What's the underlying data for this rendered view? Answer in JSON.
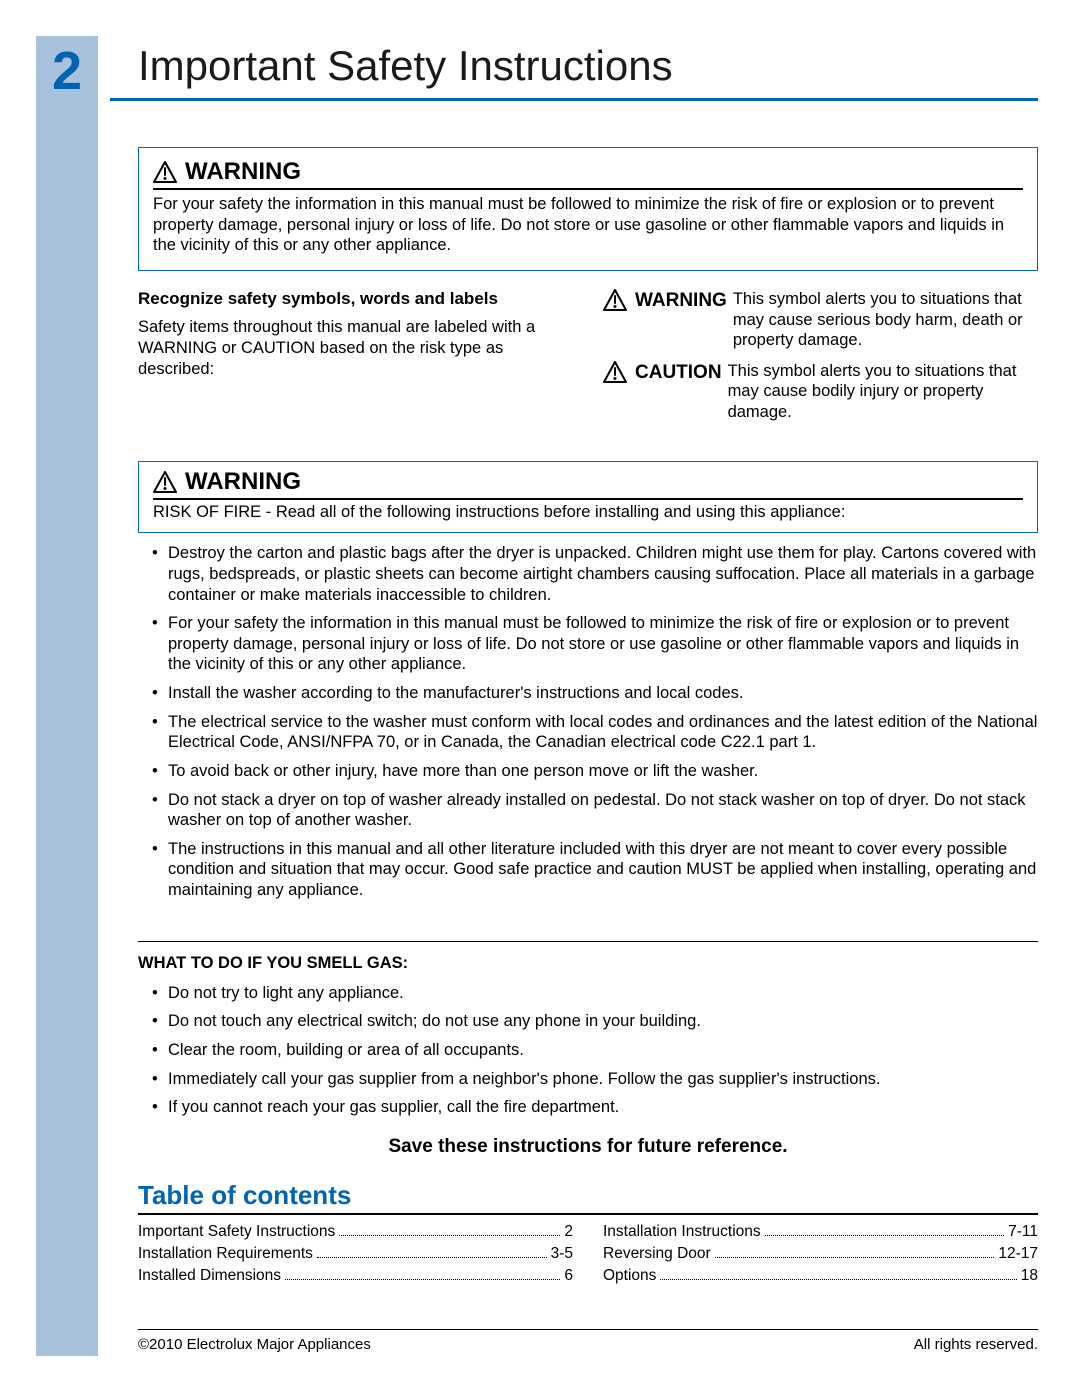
{
  "page": {
    "number": "2",
    "title": "Important Safety Instructions"
  },
  "colors": {
    "accent": "#0064b3",
    "sidebar": "#a8c1dc",
    "text": "#000000",
    "bg": "#ffffff"
  },
  "warning1": {
    "label": "WARNING",
    "body": "For your safety the information in this manual must be followed to minimize the risk of fire or explosion or to prevent property damage, personal injury or loss of life. Do not store or use gasoline or other flammable vapors and liquids in the vicinity of this or any other appliance."
  },
  "recognize": {
    "heading": "Recognize safety symbols, words and labels",
    "body": "Safety items throughout this manual are labeled with a WARNING or CAUTION based on the risk type as described:"
  },
  "symbols": {
    "warning_label": "WARNING",
    "warning_text": "This symbol alerts you to situations that may cause serious body harm, death or property damage.",
    "caution_label": "CAUTION",
    "caution_text": "This symbol alerts you to situations that may cause bodily injury or property damage."
  },
  "warning2": {
    "label": "WARNING",
    "body": "RISK OF FIRE - Read all of the following instructions before installing and using this appliance:"
  },
  "bullets": [
    "Destroy the carton and plastic bags after the dryer is unpacked. Children might use them for play. Cartons covered with rugs, bedspreads, or plastic sheets can become airtight chambers causing suffocation. Place all materials in a garbage container or make materials inaccessible to children.",
    "For your safety the information in this manual must be followed to minimize the risk of fire or explosion or to prevent property damage, personal injury or loss of life. Do not store or use gasoline or other flammable vapors and liquids in the vicinity of this or any other appliance.",
    "Install the washer according to the manufacturer's instructions and local codes.",
    "The electrical service to the washer must conform with local codes and ordinances and the latest edition of the National Electrical Code, ANSI/NFPA 70, or in Canada, the Canadian electrical code C22.1 part 1.",
    "To avoid back or other injury, have more than one person move or lift the washer.",
    "Do not stack a dryer on top of washer already installed on pedestal. Do not stack washer on top of dryer. Do not stack washer on top of another washer.",
    "The instructions in this manual and all other literature included with this dryer are not meant to cover every possible condition and situation that may occur. Good safe practice and caution MUST be applied when installing, operating and maintaining any appliance."
  ],
  "gas": {
    "heading": "WHAT TO DO IF YOU SMELL GAS:",
    "items": [
      "Do not try to light any appliance.",
      "Do not touch any electrical switch; do not use any phone in your building.",
      "Clear the room, building or area of all occupants.",
      "Immediately call your gas supplier from a neighbor's phone. Follow the gas supplier's instructions.",
      "If you cannot reach your gas supplier, call the fire department."
    ]
  },
  "save": "Save these instructions for future reference.",
  "toc": {
    "heading": "Table of contents",
    "left": [
      {
        "label": "Important Safety Instructions",
        "page": "2"
      },
      {
        "label": "Installation Requirements",
        "page": "3-5"
      },
      {
        "label": "Installed Dimensions",
        "page": "6"
      }
    ],
    "right": [
      {
        "label": "Installation Instructions",
        "page": "7-11"
      },
      {
        "label": "Reversing Door",
        "page": "12-17"
      },
      {
        "label": "Options",
        "page": "18"
      }
    ]
  },
  "footer": {
    "left": "©2010 Electrolux Major Appliances",
    "right": "All rights reserved."
  }
}
